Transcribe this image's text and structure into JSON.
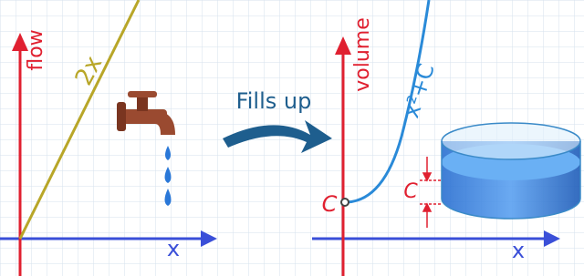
{
  "left_panel": {
    "y_label": "flow",
    "line_label": "2x",
    "x_label": "x"
  },
  "arrow_label": "Fills up",
  "right_panel": {
    "y_label": "volume",
    "curve_label": "x²+C",
    "intercept_label": "C",
    "height_label": "C",
    "x_label": "x"
  }
}
